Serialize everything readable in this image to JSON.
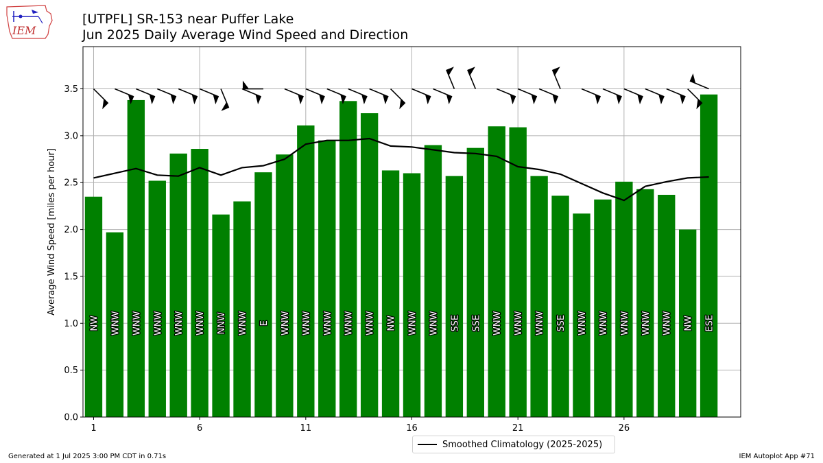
{
  "logo_text": "IEM",
  "title_line1": "[UTPFL] SR-153 near Puffer Lake",
  "title_line2": "Jun 2025 Daily Average Wind Speed and Direction",
  "footer_left": "Generated at 1 Jul 2025 3:00 PM CDT in 0.71s",
  "footer_right": "IEM Autoplot App #71",
  "legend_label": "Smoothed Climatology (2025-2025)",
  "colors": {
    "bar": "#008000",
    "line": "#000000",
    "grid": "#b0b0b0",
    "barb": "#000000"
  },
  "chart_data": {
    "type": "bar",
    "ylabel": "Average Wind Speed [miles per hour]",
    "xlabel": "",
    "ylim": [
      0,
      3.95
    ],
    "xlim": [
      0.5,
      31.5
    ],
    "grid": true,
    "x_ticks": [
      1,
      6,
      11,
      16,
      21,
      26
    ],
    "y_ticks": [
      "0.0",
      "0.5",
      "1.0",
      "1.5",
      "2.0",
      "2.5",
      "3.0",
      "3.5"
    ],
    "days": [
      1,
      2,
      3,
      4,
      5,
      6,
      7,
      8,
      9,
      10,
      11,
      12,
      13,
      14,
      15,
      16,
      17,
      18,
      19,
      20,
      21,
      22,
      23,
      24,
      25,
      26,
      27,
      28,
      29,
      30
    ],
    "values": [
      2.35,
      1.97,
      3.38,
      2.52,
      2.81,
      2.86,
      2.16,
      2.3,
      2.61,
      2.8,
      3.11,
      2.95,
      3.37,
      3.24,
      2.63,
      2.6,
      2.9,
      2.57,
      2.87,
      3.1,
      3.09,
      2.57,
      2.36,
      2.17,
      2.32,
      2.51,
      2.43,
      2.37,
      2.0,
      3.44
    ],
    "directions": [
      "NW",
      "WNW",
      "WNW",
      "WNW",
      "WNW",
      "WNW",
      "NNW",
      "WNW",
      "E",
      "WNW",
      "WNW",
      "WNW",
      "WNW",
      "WNW",
      "NW",
      "WNW",
      "WNW",
      "SSE",
      "SSE",
      "WNW",
      "WNW",
      "WNW",
      "SSE",
      "WNW",
      "WNW",
      "WNW",
      "WNW",
      "WNW",
      "NW",
      "ESE"
    ],
    "climatology": {
      "name": "Smoothed Climatology (2025-2025)",
      "values": [
        2.55,
        2.6,
        2.65,
        2.58,
        2.57,
        2.66,
        2.58,
        2.66,
        2.68,
        2.75,
        2.91,
        2.95,
        2.95,
        2.97,
        2.89,
        2.88,
        2.85,
        2.82,
        2.81,
        2.78,
        2.67,
        2.64,
        2.59,
        2.49,
        2.39,
        2.31,
        2.46,
        2.51,
        2.55,
        2.56
      ]
    }
  }
}
